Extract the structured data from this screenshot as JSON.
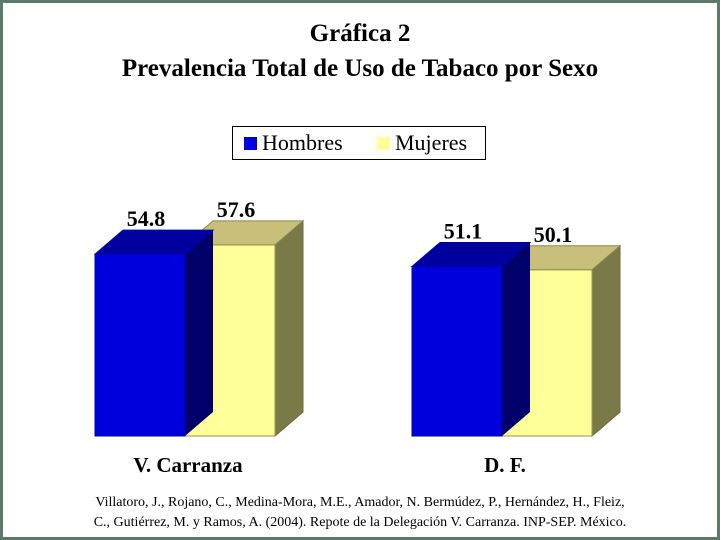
{
  "title_line1": "Gráfica 2",
  "title_line2": "Prevalencia Total de Uso de Tabaco por Sexo",
  "legend": [
    {
      "label": "Hombres",
      "color": "#0000dd"
    },
    {
      "label": "Mujeres",
      "color": "#ffff99"
    }
  ],
  "source_line1": "Villatoro, J., Rojano, C., Medina-Mora, M.E., Amador, N. Bermúdez, P., Hernández, H., Fleiz,",
  "source_line2": "C., Gutiérrez, M. y Ramos, A. (2004). Repote de la Delegación V. Carranza. INP-SEP. México.",
  "chart_data": {
    "type": "bar",
    "style": "3d-clustered",
    "categories": [
      "V. Carranza",
      "D. F."
    ],
    "series": [
      {
        "name": "Hombres",
        "color": "#0000dd",
        "values": [
          54.8,
          51.1
        ],
        "value_labels": [
          "54.8",
          "51.1"
        ]
      },
      {
        "name": "Mujeres",
        "color": "#ffff99",
        "values": [
          57.6,
          50.1
        ],
        "value_labels": [
          "57.6",
          "50.1"
        ]
      }
    ],
    "title": "Gráfica 2 Prevalencia Total de Uso de Tabaco por Sexo",
    "xlabel": "",
    "ylabel": "",
    "axis_visible": false,
    "grid": false,
    "legend_position": "top-center"
  }
}
